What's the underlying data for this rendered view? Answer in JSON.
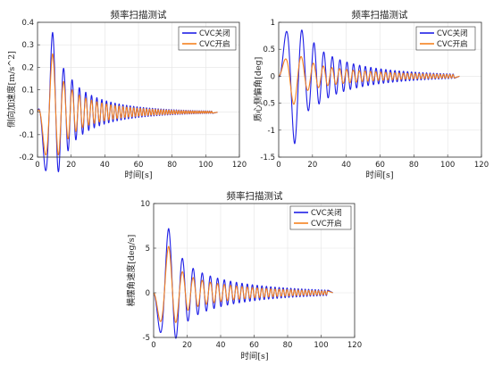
{
  "colors": {
    "cvc_off": "#1f1fe6",
    "cvc_on": "#f5821f",
    "grid": "#e4e4e4",
    "axis": "#333333"
  },
  "chart_data": [
    {
      "type": "line",
      "title": "频率扫描测试",
      "xlabel": "时间[s]",
      "ylabel": "侧向加速度[m/s^2]",
      "xlim": [
        0,
        120
      ],
      "ylim": [
        -0.2,
        0.4
      ],
      "xticks": [
        "0",
        "20",
        "40",
        "60",
        "80",
        "100",
        "120"
      ],
      "yticks": [
        "-0.2",
        "-0.1",
        "0",
        "0.1",
        "0.2",
        "0.3",
        "0.4"
      ],
      "grid": true,
      "legend_position": "top-right",
      "legend": [
        "CVC关闭",
        "CVC开启"
      ],
      "series": [
        {
          "name": "CVC关闭",
          "model": "sweep",
          "t_end": 104,
          "first_peak": {
            "t": 9,
            "value": 0.355
          },
          "first_trough": {
            "t": 15,
            "value": -0.2
          },
          "second_peak": {
            "t": 19.5,
            "value": 0.16
          },
          "amplitude_at_end": 0.005,
          "f0_hz": 0.06,
          "f1_hz": 0.85
        },
        {
          "name": "CVC开启",
          "model": "sweep",
          "t_end": 104,
          "first_peak": {
            "t": 9,
            "value": 0.26
          },
          "first_trough": {
            "t": 15,
            "value": -0.14
          },
          "second_peak": {
            "t": 19.5,
            "value": 0.11
          },
          "amplitude_at_end": 0.004,
          "f0_hz": 0.06,
          "f1_hz": 0.85
        }
      ]
    },
    {
      "type": "line",
      "title": "频率扫描测试",
      "xlabel": "时间[s]",
      "ylabel": "质心侧偏角[deg]",
      "xlim": [
        0,
        120
      ],
      "ylim": [
        -1.5,
        1
      ],
      "xticks": [
        "0",
        "20",
        "40",
        "60",
        "80",
        "100",
        "120"
      ],
      "yticks": [
        "-1.5",
        "-1",
        "-0.5",
        "0",
        "0.5",
        "1"
      ],
      "grid": true,
      "legend_position": "top-right",
      "legend": [
        "CVC关闭",
        "CVC开启"
      ],
      "series": [
        {
          "name": "CVC关闭",
          "model": "sweep",
          "t_end": 104,
          "first_peak": {
            "t": 9.5,
            "value": -1.25
          },
          "first_trough": {
            "t": 16,
            "value": 0.65
          },
          "second_peak": {
            "t": 21,
            "value": -0.62
          },
          "amplitude_at_end": 0.04,
          "f0_hz": 0.06,
          "f1_hz": 0.55
        },
        {
          "name": "CVC开启",
          "model": "sweep",
          "t_end": 104,
          "first_peak": {
            "t": 9,
            "value": -0.52
          },
          "first_trough": {
            "t": 16,
            "value": 0.27
          },
          "second_peak": {
            "t": 21,
            "value": -0.24
          },
          "amplitude_at_end": 0.03,
          "f0_hz": 0.06,
          "f1_hz": 0.55
        }
      ]
    },
    {
      "type": "line",
      "title": "频率扫描测试",
      "xlabel": "时间[s]",
      "ylabel": "横摆角速度[deg/s]",
      "xlim": [
        0,
        120
      ],
      "ylim": [
        -5,
        10
      ],
      "xticks": [
        "0",
        "20",
        "40",
        "60",
        "80",
        "100",
        "120"
      ],
      "yticks": [
        "-5",
        "0",
        "5",
        "10"
      ],
      "grid": true,
      "legend_position": "top-right",
      "legend": [
        "CVC关闭",
        "CVC开启"
      ],
      "series": [
        {
          "name": "CVC关闭",
          "model": "sweep",
          "t_end": 104,
          "first_peak": {
            "t": 9,
            "value": 7.2
          },
          "first_trough": {
            "t": 15,
            "value": -4.3
          },
          "second_peak": {
            "t": 19.5,
            "value": 3.4
          },
          "amplitude_at_end": 0.3,
          "f0_hz": 0.06,
          "f1_hz": 0.55
        },
        {
          "name": "CVC开启",
          "model": "sweep",
          "t_end": 104,
          "first_peak": {
            "t": 9,
            "value": 5.2
          },
          "first_trough": {
            "t": 15,
            "value": -2.6
          },
          "second_peak": {
            "t": 19.5,
            "value": 2.1
          },
          "amplitude_at_end": 0.2,
          "f0_hz": 0.06,
          "f1_hz": 0.55
        }
      ]
    }
  ]
}
